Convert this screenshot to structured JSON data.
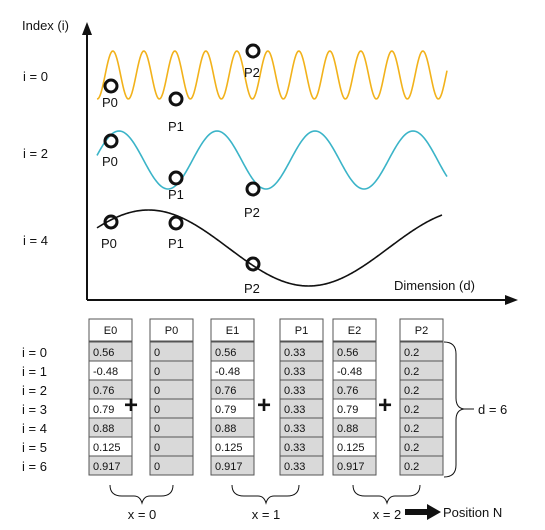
{
  "top": {
    "y_axis_label": "Index (i)",
    "x_axis_label": "Dimension (d)",
    "rows": [
      {
        "index_label": "i = 0",
        "color": "#f2b21b",
        "points": [
          "P0",
          "P1",
          "P2"
        ]
      },
      {
        "index_label": "i = 2",
        "color": "#3bb4c8",
        "points": [
          "P0",
          "P1",
          "P2"
        ]
      },
      {
        "index_label": "i = 4",
        "color": "#111111",
        "points": [
          "P0",
          "P1",
          "P2"
        ]
      }
    ]
  },
  "bottom": {
    "row_labels": [
      "i = 0",
      "i = 1",
      "i = 2",
      "i = 3",
      "i = 4",
      "i = 5",
      "i = 6"
    ],
    "columns": [
      {
        "header": "E0",
        "values": [
          "0.56",
          "-0.48",
          "0.76",
          "0.79",
          "0.88",
          "0.125",
          "0.917"
        ]
      },
      {
        "header": "P0",
        "values": [
          "0",
          "0",
          "0",
          "0",
          "0",
          "0",
          "0"
        ]
      },
      {
        "header": "E1",
        "values": [
          "0.56",
          "-0.48",
          "0.76",
          "0.79",
          "0.88",
          "0.125",
          "0.917"
        ]
      },
      {
        "header": "P1",
        "values": [
          "0.33",
          "0.33",
          "0.33",
          "0.33",
          "0.33",
          "0.33",
          "0.33"
        ]
      },
      {
        "header": "E2",
        "values": [
          "0.56",
          "-0.48",
          "0.76",
          "0.79",
          "0.88",
          "0.125",
          "0.917"
        ]
      },
      {
        "header": "P2",
        "values": [
          "0.2",
          "0.2",
          "0.2",
          "0.2",
          "0.2",
          "0.2",
          "0.2"
        ]
      }
    ],
    "plus_symbol": "+",
    "groups": [
      "x = 0",
      "x = 1",
      "x = 2"
    ],
    "dimension_label": "d = 6",
    "position_label": "Position N",
    "shaded_color": "#d9d9d9"
  }
}
